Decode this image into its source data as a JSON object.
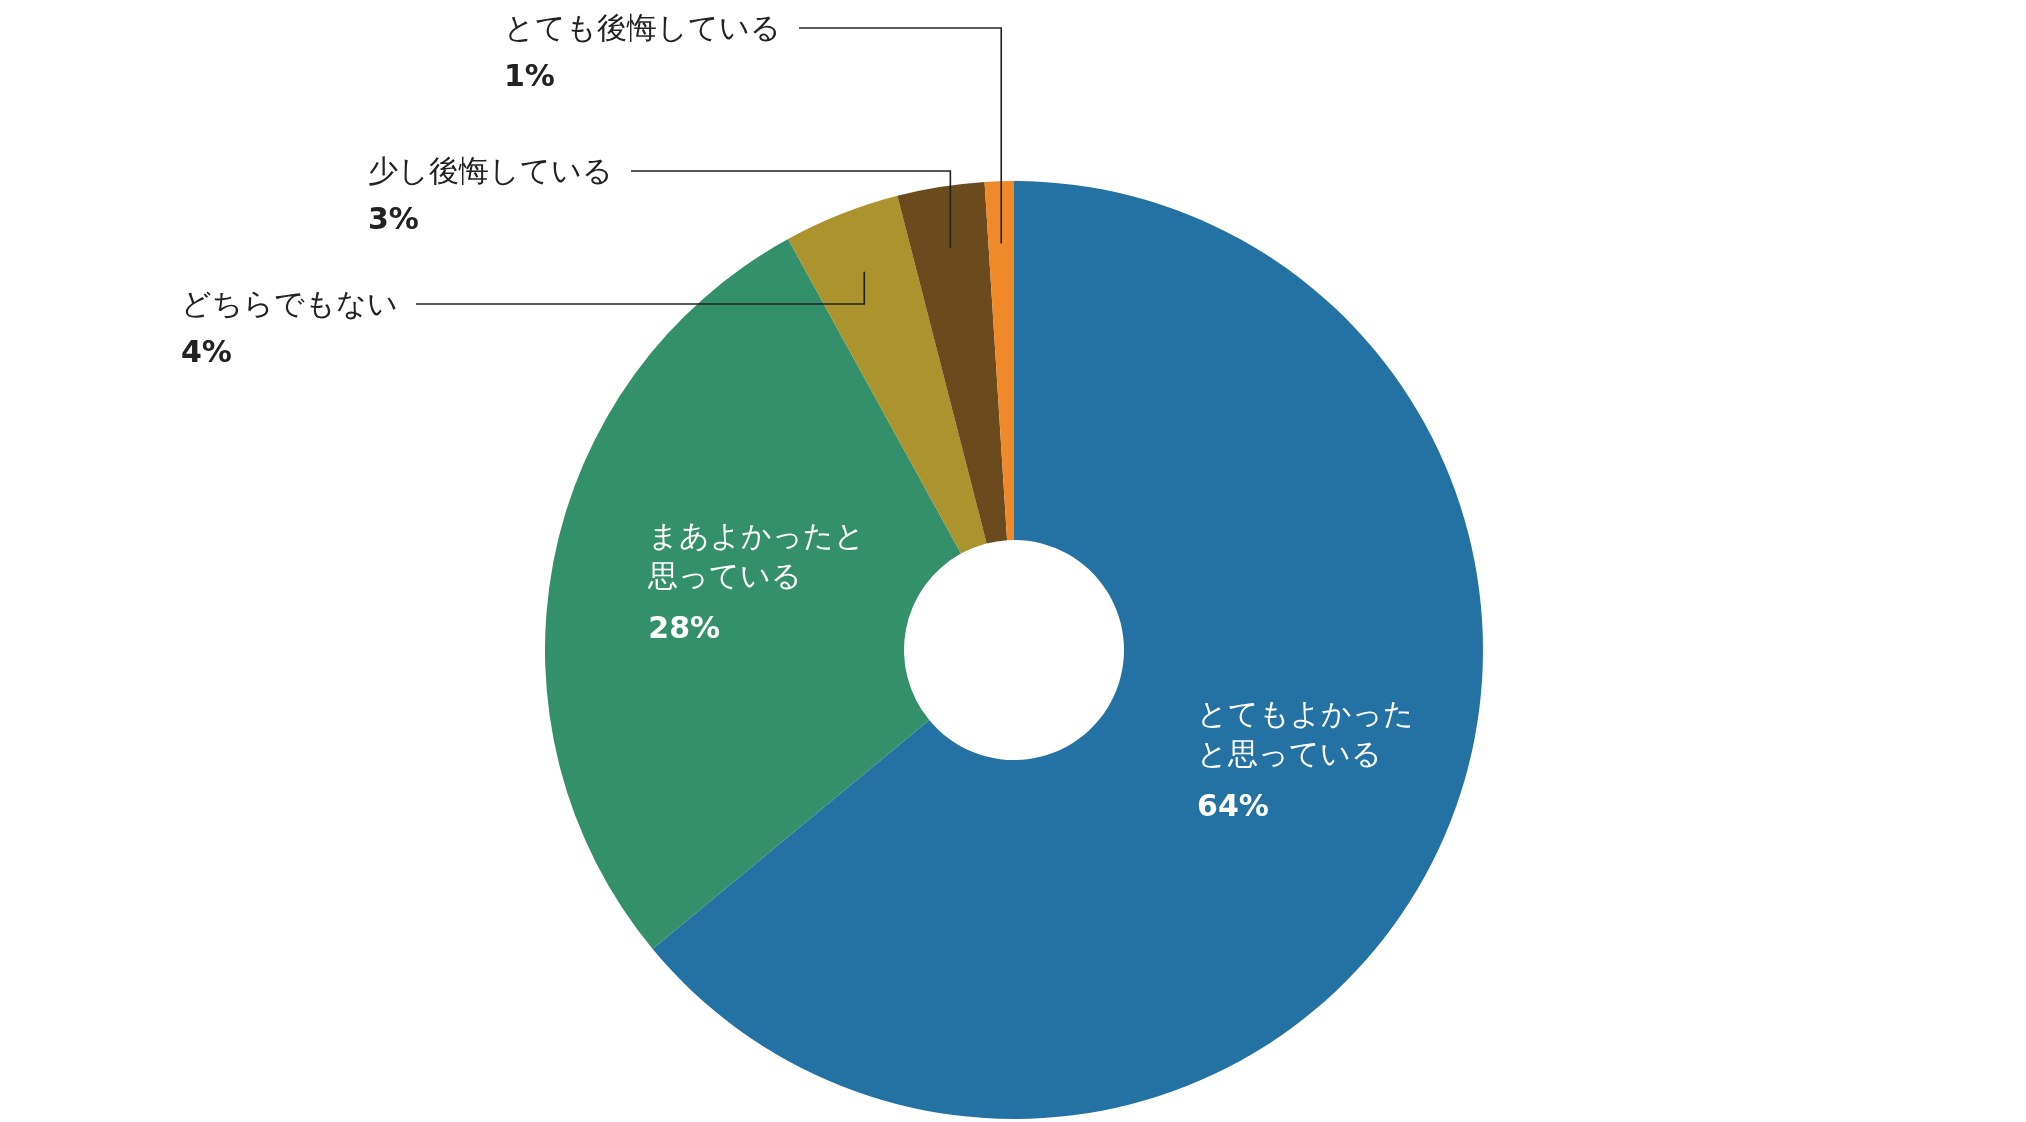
{
  "chart_data": {
    "type": "donut",
    "categories": [
      "とてもよかったと思っている",
      "まあよかったと思っている",
      "どちらでもない",
      "少し後悔している",
      "とても後悔している"
    ],
    "values": [
      64,
      28,
      4,
      3,
      1
    ],
    "colors": [
      "#2471a3",
      "#33906a",
      "#ab932e",
      "#6b4a1e",
      "#f0892a"
    ],
    "value_labels": [
      "64%",
      "28%",
      "4%",
      "3%",
      "1%"
    ]
  }
}
